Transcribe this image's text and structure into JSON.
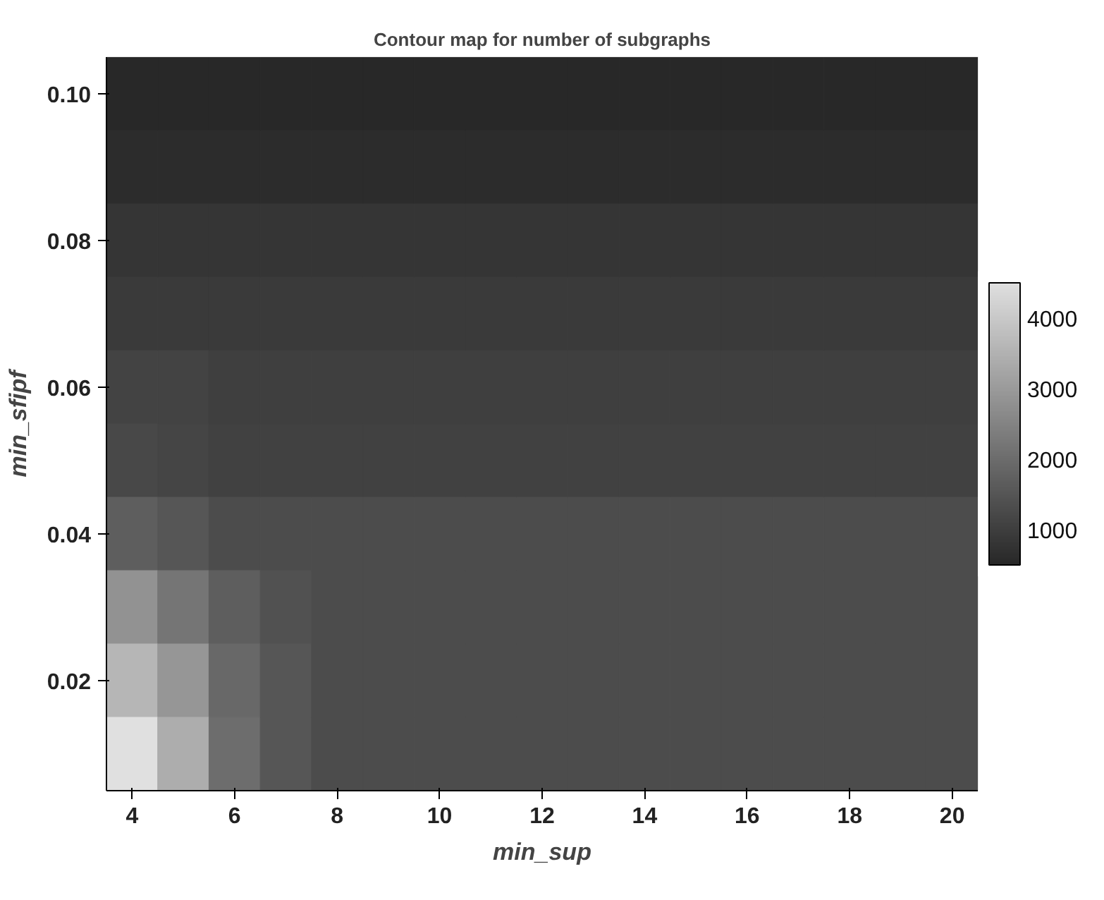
{
  "chart_data": {
    "type": "heatmap",
    "title": "Contour map for number of subgraphs",
    "xlabel": "min_sup",
    "ylabel": "min_sfipf",
    "categories": [
      "4",
      null,
      "6",
      null,
      "8",
      null,
      "10",
      null,
      "12",
      null,
      "14",
      null,
      "16",
      null,
      "18",
      null,
      "20"
    ],
    "y_categories": [
      "0.10",
      null,
      "0.08",
      null,
      "0.06",
      null,
      "0.04",
      null,
      "0.02",
      null
    ],
    "cells": [
      [
        500,
        500,
        500,
        500,
        500,
        500,
        500,
        500,
        500,
        500,
        500,
        500,
        500,
        500,
        500,
        500,
        500
      ],
      [
        600,
        600,
        600,
        600,
        600,
        600,
        600,
        600,
        600,
        600,
        600,
        600,
        600,
        600,
        600,
        600,
        600
      ],
      [
        800,
        800,
        800,
        800,
        800,
        800,
        800,
        800,
        800,
        800,
        800,
        800,
        800,
        800,
        800,
        800,
        800
      ],
      [
        900,
        900,
        900,
        900,
        900,
        900,
        900,
        900,
        900,
        900,
        900,
        900,
        900,
        900,
        900,
        900,
        900
      ],
      [
        1100,
        1100,
        1000,
        1000,
        1000,
        1000,
        1000,
        1000,
        1000,
        1000,
        1000,
        1000,
        1000,
        1000,
        1000,
        1000,
        1000
      ],
      [
        1200,
        1150,
        1050,
        1050,
        1050,
        1050,
        1050,
        1050,
        1050,
        1050,
        1050,
        1050,
        1050,
        1050,
        1050,
        1050,
        1050
      ],
      [
        1700,
        1500,
        1300,
        1300,
        1300,
        1300,
        1300,
        1300,
        1300,
        1300,
        1300,
        1300,
        1300,
        1300,
        1300,
        1300,
        1300
      ],
      [
        2800,
        2200,
        1700,
        1400,
        1300,
        1300,
        1300,
        1300,
        1300,
        1300,
        1300,
        1300,
        1300,
        1300,
        1300,
        1300,
        1300
      ],
      [
        3600,
        2900,
        1900,
        1500,
        1300,
        1300,
        1300,
        1300,
        1300,
        1300,
        1300,
        1300,
        1300,
        1300,
        1300,
        1300,
        1300
      ],
      [
        4500,
        3400,
        2000,
        1500,
        1300,
        1300,
        1300,
        1300,
        1300,
        1300,
        1300,
        1300,
        1300,
        1300,
        1300,
        1300,
        1300
      ]
    ],
    "clim": [
      500,
      4500
    ],
    "cticks": [
      1000,
      2000,
      3000,
      4000
    ]
  }
}
